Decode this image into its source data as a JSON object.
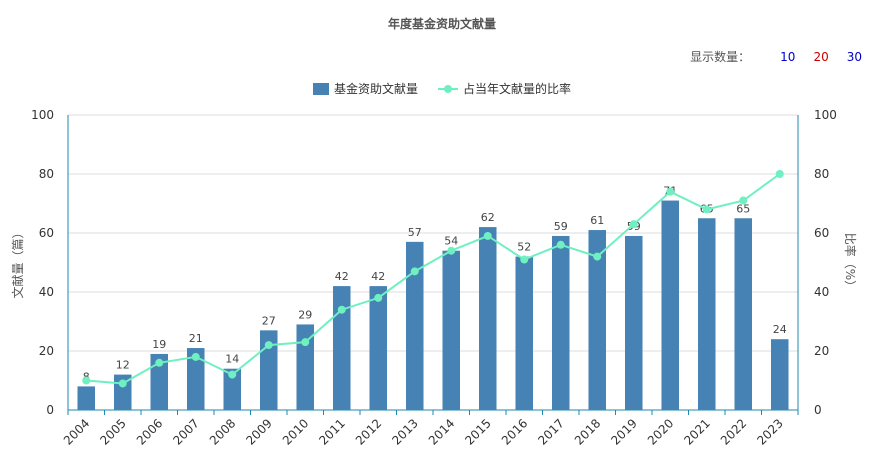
{
  "title": "年度基金资助文献量",
  "count_selector": {
    "label": "显示数量：",
    "options": [
      {
        "label": "10",
        "color": "#0000cc"
      },
      {
        "label": "20",
        "color": "#cc0000"
      },
      {
        "label": "30",
        "color": "#0000cc"
      }
    ]
  },
  "colors": {
    "bar": "#4682b4",
    "line": "#6ef0c0",
    "axis": "#1f8ab0",
    "grid": "#dddddd"
  },
  "chart_data": {
    "type": "bar",
    "title": "年度基金资助文献量",
    "categories": [
      "2004",
      "2005",
      "2006",
      "2007",
      "2008",
      "2009",
      "2010",
      "2011",
      "2012",
      "2013",
      "2014",
      "2015",
      "2016",
      "2017",
      "2018",
      "2019",
      "2020",
      "2021",
      "2022",
      "2023"
    ],
    "series": [
      {
        "name": "基金资助文献量",
        "type": "bar",
        "axis": "left",
        "values": [
          8,
          12,
          19,
          21,
          14,
          27,
          29,
          42,
          42,
          57,
          54,
          62,
          52,
          59,
          61,
          59,
          71,
          65,
          65,
          24
        ]
      },
      {
        "name": "占当年文献量的比率",
        "type": "line",
        "axis": "right",
        "values": [
          10,
          9,
          16,
          18,
          12,
          22,
          23,
          34,
          38,
          47,
          54,
          59,
          51,
          56,
          52,
          63,
          74,
          68,
          71,
          80
        ]
      }
    ],
    "ylabel": "文献量（篇）",
    "y2label": "比率（%）",
    "ylim": [
      0,
      100
    ],
    "y2lim": [
      0,
      100
    ],
    "yticks": [
      0,
      20,
      40,
      60,
      80,
      100
    ],
    "y2ticks": [
      0,
      20,
      40,
      60,
      80,
      100
    ],
    "grid": true,
    "legend_position": "top-center"
  }
}
